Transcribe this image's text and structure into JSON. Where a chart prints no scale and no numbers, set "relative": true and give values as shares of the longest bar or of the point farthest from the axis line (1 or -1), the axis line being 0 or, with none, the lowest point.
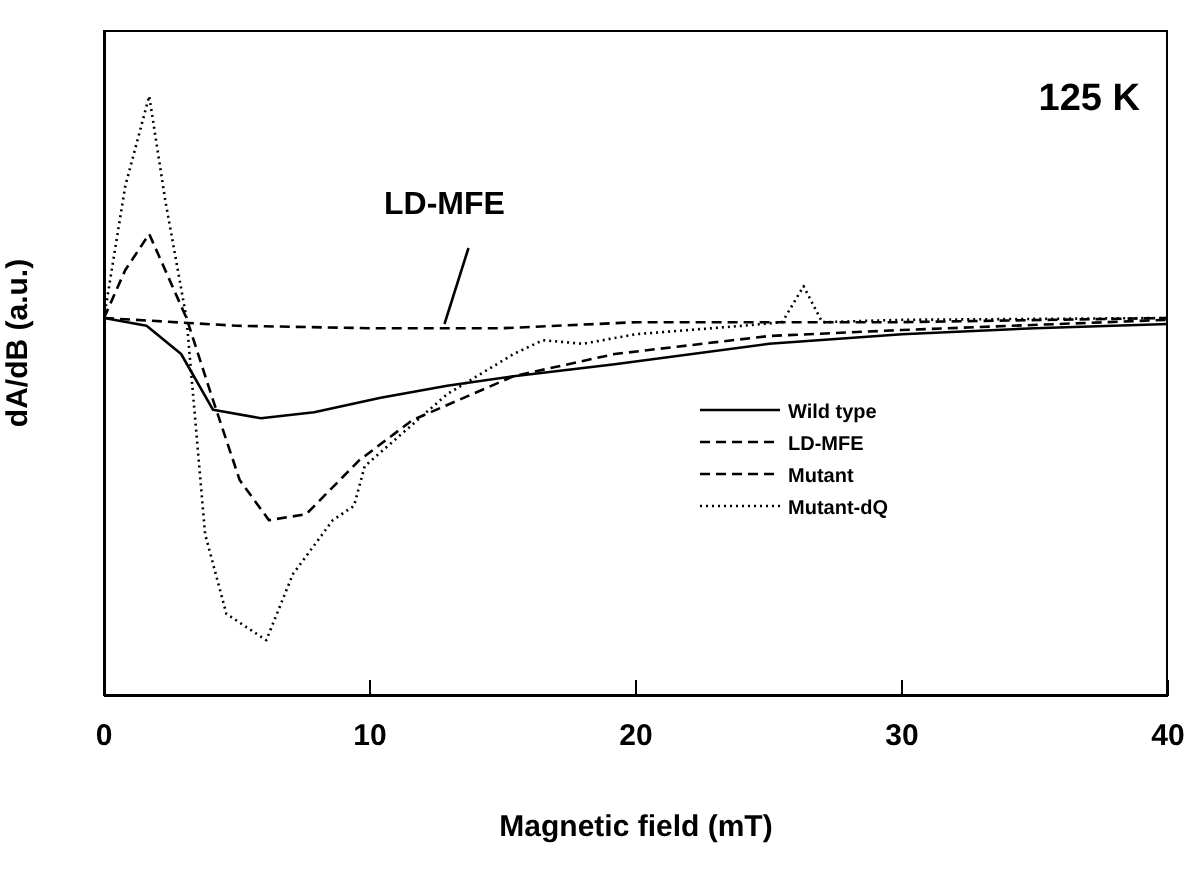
{
  "chart_data": {
    "type": "line",
    "relative": true,
    "xlabel": "Magnetic field  (mT)",
    "ylabel": "dA/dB  (a.u.)",
    "xlim": [
      0,
      40
    ],
    "xticks": [
      0,
      10,
      20,
      30,
      40
    ],
    "legend": "right",
    "marker": "none",
    "annotations": [
      "125 K",
      {
        "text": "LD-MFE",
        "x": 12.8,
        "y": 0.62
      }
    ],
    "series": [
      {
        "name": "Wild type",
        "color": "#000000",
        "line_style": "solid",
        "x": [
          0,
          1.6,
          2.9,
          4.1,
          5.9,
          7.9,
          10.4,
          12.9,
          15.4,
          19.2,
          25,
          30,
          35,
          40
        ],
        "values": [
          0.63,
          0.617,
          0.57,
          0.477,
          0.463,
          0.473,
          0.497,
          0.517,
          0.533,
          0.553,
          0.587,
          0.603,
          0.613,
          0.62
        ]
      },
      {
        "name": "LD-MFE",
        "color": "#000000",
        "line_style": "dashed",
        "x": [
          0,
          5,
          10,
          15,
          20,
          30,
          40
        ],
        "values": [
          0.63,
          0.617,
          0.613,
          0.613,
          0.623,
          0.623,
          0.63
        ]
      },
      {
        "name": "Mutant",
        "color": "#000000",
        "line_style": "dashed",
        "x": [
          0,
          0.8,
          1.7,
          3.1,
          4.1,
          5.1,
          6.2,
          7.6,
          9.6,
          11.6,
          15.4,
          19.2,
          25,
          30,
          40
        ],
        "values": [
          0.63,
          0.71,
          0.77,
          0.63,
          0.493,
          0.36,
          0.293,
          0.303,
          0.393,
          0.46,
          0.533,
          0.57,
          0.6,
          0.61,
          0.627
        ]
      },
      {
        "name": "Mutant-dQ",
        "color": "#000000",
        "line_style": "dotted",
        "x": [
          0,
          0.8,
          1.7,
          2.3,
          3.1,
          3.8,
          4.6,
          6.1,
          7.1,
          8.6,
          9.4,
          9.8,
          12.9,
          15.4,
          16.5,
          18,
          20,
          24,
          25.5,
          26.3,
          27,
          30,
          40
        ],
        "values": [
          0.63,
          0.85,
          1.0,
          0.827,
          0.63,
          0.27,
          0.137,
          0.093,
          0.203,
          0.293,
          0.317,
          0.383,
          0.503,
          0.57,
          0.593,
          0.587,
          0.603,
          0.617,
          0.623,
          0.683,
          0.623,
          0.627,
          0.63
        ]
      }
    ]
  }
}
